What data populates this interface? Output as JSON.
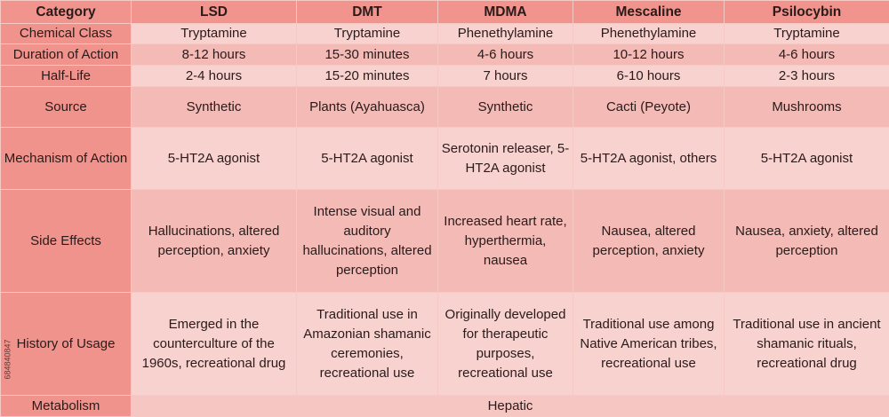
{
  "table": {
    "headers": [
      "Category",
      "LSD",
      "DMT",
      "MDMA",
      "Mescaline",
      "Psilocybin"
    ],
    "rows": [
      {
        "category": "Chemical Class",
        "values": [
          "Tryptamine",
          "Tryptamine",
          "Phenethylamine",
          "Phenethylamine",
          "Tryptamine"
        ]
      },
      {
        "category": "Duration of Action",
        "values": [
          "8-12 hours",
          "15-30 minutes",
          "4-6 hours",
          "10-12 hours",
          "4-6 hours"
        ]
      },
      {
        "category": "Half-Life",
        "values": [
          "2-4 hours",
          "15-20 minutes",
          "7 hours",
          "6-10 hours",
          "2-3 hours"
        ]
      },
      {
        "category": "Source",
        "values": [
          "Synthetic",
          "Plants (Ayahuasca)",
          "Synthetic",
          "Cacti (Peyote)",
          "Mushrooms"
        ]
      },
      {
        "category": "Mechanism of Action",
        "values": [
          "5-HT2A agonist",
          "5-HT2A agonist",
          "Serotonin releaser, 5-HT2A agonist",
          "5-HT2A agonist, others",
          "5-HT2A agonist"
        ]
      },
      {
        "category": "Side Effects",
        "values": [
          "Hallucinations, altered perception, anxiety",
          "Intense visual and auditory hallucinations, altered perception",
          "Increased heart rate, hyperthermia, nausea",
          "Nausea, altered perception, anxiety",
          "Nausea, anxiety, altered perception"
        ]
      },
      {
        "category": "History of Usage",
        "values": [
          "Emerged in the counterculture of the 1960s, recreational drug",
          "Traditional use in Amazonian shamanic ceremonies, recreational use",
          "Originally developed for therapeutic purposes, recreational use",
          "Traditional use among Native American tribes, recreational use",
          "Traditional use in ancient shamanic rituals, recreational drug"
        ]
      }
    ],
    "metabolism": {
      "category": "Metabolism",
      "value": "Hepatic"
    }
  },
  "watermark": {
    "stock_id": "684840847"
  }
}
